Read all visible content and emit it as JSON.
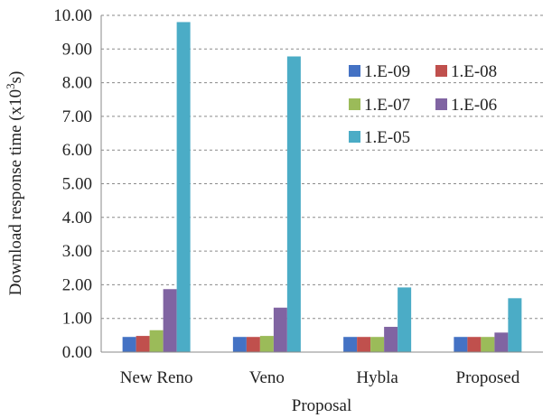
{
  "chart_data": {
    "type": "bar",
    "title": "",
    "xlabel": "Proposal",
    "ylabel": "Download response time (x10",
    "ylabel_sup": "3",
    "ylabel_suffix": "s)",
    "categories": [
      "New Reno",
      "Veno",
      "Hybla",
      "Proposed"
    ],
    "ylim": [
      0,
      10
    ],
    "yticks": [
      "0.00",
      "1.00",
      "2.00",
      "3.00",
      "4.00",
      "5.00",
      "6.00",
      "7.00",
      "8.00",
      "9.00",
      "10.00"
    ],
    "grid": true,
    "legend_position": "top-right",
    "series": [
      {
        "name": "1.E-09",
        "color": "#4472C4",
        "values": [
          0.45,
          0.45,
          0.45,
          0.45
        ]
      },
      {
        "name": "1.E-08",
        "color": "#C0504D",
        "values": [
          0.48,
          0.45,
          0.45,
          0.45
        ]
      },
      {
        "name": "1.E-07",
        "color": "#9BBB59",
        "values": [
          0.65,
          0.48,
          0.45,
          0.45
        ]
      },
      {
        "name": "1.E-06",
        "color": "#8064A2",
        "values": [
          1.87,
          1.32,
          0.75,
          0.58
        ]
      },
      {
        "name": "1.E-05",
        "color": "#4BACC6",
        "values": [
          9.8,
          8.78,
          1.92,
          1.6
        ]
      }
    ]
  }
}
